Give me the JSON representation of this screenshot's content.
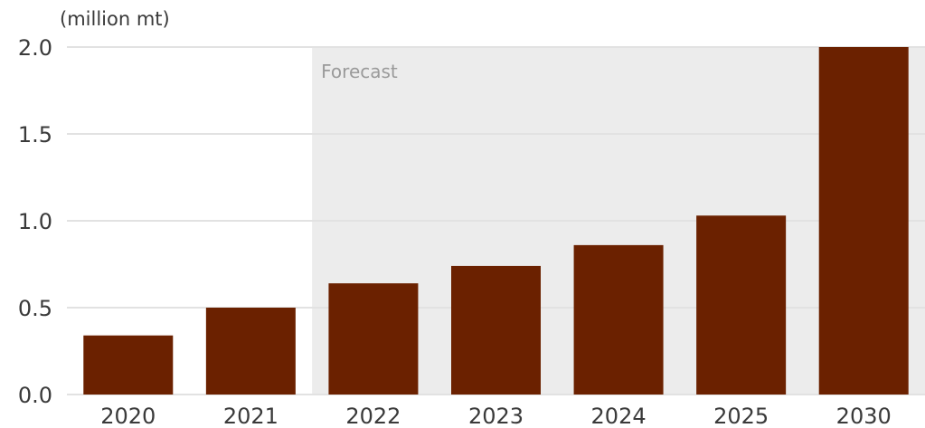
{
  "chart_data": {
    "type": "bar",
    "unit_label": "(million mt)",
    "forecast_label": "Forecast",
    "categories": [
      "2020",
      "2021",
      "2022",
      "2023",
      "2024",
      "2025",
      "2030"
    ],
    "values": [
      0.34,
      0.5,
      0.64,
      0.74,
      0.86,
      1.03,
      2.0
    ],
    "forecast_start_category": "2022",
    "ylim": [
      0,
      2.0
    ],
    "yticks": [
      "0.0",
      "0.5",
      "1.0",
      "1.5",
      "2.0"
    ],
    "grid": true,
    "colors": {
      "bar": "#6b2100",
      "forecast_band": "#ececec",
      "grid": "#e2e2e2"
    }
  }
}
